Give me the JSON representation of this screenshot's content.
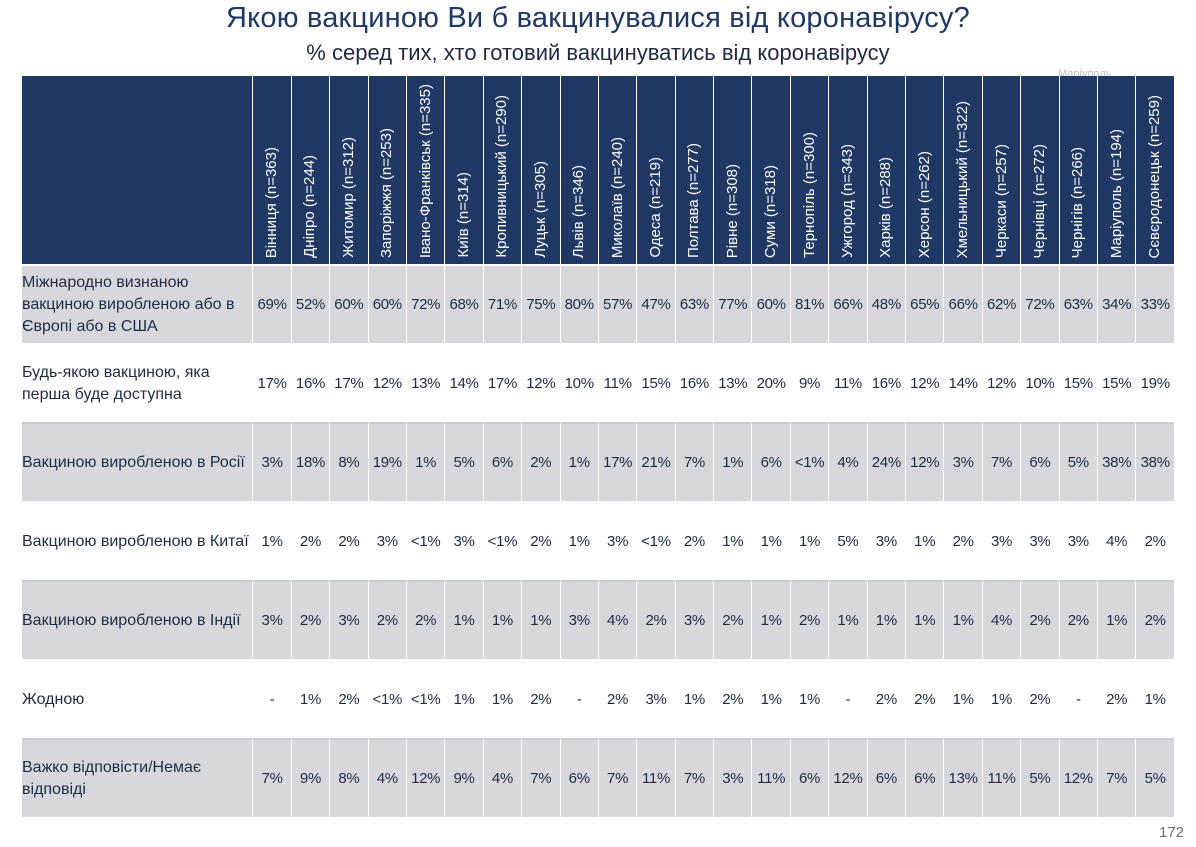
{
  "chart_data": {
    "type": "table",
    "title": "Якою вакциною Ви б вакцинувалися від коронавірусу?",
    "subtitle": "% серед тих, хто готовий вакцинуватись від коронавірусу",
    "columns": [
      "Вінниця (n=363)",
      "Дніпро (n=244)",
      "Житомир (n=312)",
      "Запоріжжя (n=253)",
      "Івано-Франківськ (n=335)",
      "Київ (n=314)",
      "Кропивницький (n=290)",
      "Луцьк (n=305)",
      "Львів (n=346)",
      "Миколаїв (n=240)",
      "Одеса (n=219)",
      "Полтава (n=277)",
      "Рівне (n=308)",
      "Суми (n=318)",
      "Тернопіль (n=300)",
      "Ужгород (n=343)",
      "Харків (n=288)",
      "Херсон (n=262)",
      "Хмельницький (n=322)",
      "Черкаси (n=257)",
      "Чернівці (n=272)",
      "Чернігів (n=266)",
      "Маріуполь (n=194)",
      "Сєвєродонецьк (n=259)"
    ],
    "rows": [
      {
        "label": "Міжнародно визнаною вакциною виробленою або в Європі або в США",
        "values": [
          "69%",
          "52%",
          "60%",
          "60%",
          "72%",
          "68%",
          "71%",
          "75%",
          "80%",
          "57%",
          "47%",
          "63%",
          "77%",
          "60%",
          "81%",
          "66%",
          "48%",
          "65%",
          "66%",
          "62%",
          "72%",
          "63%",
          "34%",
          "33%"
        ]
      },
      {
        "label": "Будь-якою вакциною, яка перша буде доступна",
        "values": [
          "17%",
          "16%",
          "17%",
          "12%",
          "13%",
          "14%",
          "17%",
          "12%",
          "10%",
          "11%",
          "15%",
          "16%",
          "13%",
          "20%",
          "9%",
          "11%",
          "16%",
          "12%",
          "14%",
          "12%",
          "10%",
          "15%",
          "15%",
          "19%"
        ]
      },
      {
        "label": "Вакциною виробленою в Росії",
        "values": [
          "3%",
          "18%",
          "8%",
          "19%",
          "1%",
          "5%",
          "6%",
          "2%",
          "1%",
          "17%",
          "21%",
          "7%",
          "1%",
          "6%",
          "<1%",
          "4%",
          "24%",
          "12%",
          "3%",
          "7%",
          "6%",
          "5%",
          "38%",
          "38%"
        ]
      },
      {
        "label": "Вакциною виробленою в Китаї",
        "values": [
          "1%",
          "2%",
          "2%",
          "3%",
          "<1%",
          "3%",
          "<1%",
          "2%",
          "1%",
          "3%",
          "<1%",
          "2%",
          "1%",
          "1%",
          "1%",
          "5%",
          "3%",
          "1%",
          "2%",
          "3%",
          "3%",
          "3%",
          "4%",
          "2%"
        ]
      },
      {
        "label": "Вакциною виробленою в Індії",
        "values": [
          "3%",
          "2%",
          "3%",
          "2%",
          "2%",
          "1%",
          "1%",
          "1%",
          "3%",
          "4%",
          "2%",
          "3%",
          "2%",
          "1%",
          "2%",
          "1%",
          "1%",
          "1%",
          "1%",
          "4%",
          "2%",
          "2%",
          "1%",
          "2%"
        ]
      },
      {
        "label": "Жодною",
        "values": [
          "-",
          "1%",
          "2%",
          "<1%",
          "<1%",
          "1%",
          "1%",
          "2%",
          "-",
          "2%",
          "3%",
          "1%",
          "2%",
          "1%",
          "1%",
          "-",
          "2%",
          "2%",
          "1%",
          "1%",
          "2%",
          "-",
          "2%",
          "1%"
        ]
      },
      {
        "label": "Важко відповісти/Немає відповіді",
        "values": [
          "7%",
          "9%",
          "8%",
          "4%",
          "12%",
          "9%",
          "4%",
          "7%",
          "6%",
          "7%",
          "11%",
          "7%",
          "3%",
          "11%",
          "6%",
          "12%",
          "6%",
          "6%",
          "13%",
          "11%",
          "5%",
          "12%",
          "7%",
          "5%"
        ]
      }
    ]
  },
  "watermark": "Маріуполь",
  "page_number": "172",
  "colors": {
    "header_bg": "#1f3864",
    "row_shade": "#d6d8dc",
    "title": "#1f3864"
  }
}
